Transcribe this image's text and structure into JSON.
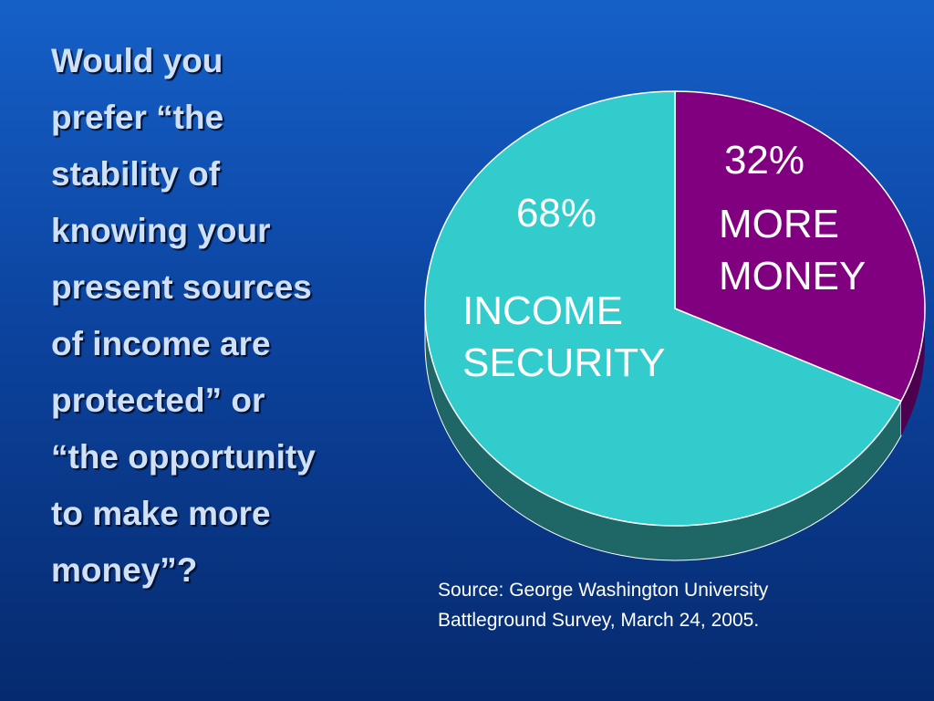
{
  "slide": {
    "question": "Would you\nprefer “the\nstability of\nknowing your\npresent sources\nof income are\nprotected” or\n“the opportunity\nto make more\nmoney”?",
    "source_line1": "Source: George Washington University",
    "source_line2": "Battleground Survey, March 24, 2005."
  },
  "colors": {
    "income_security": "#33CCCC",
    "income_security_side": "#1F6666",
    "more_money": "#800080",
    "more_money_side": "#4d004d"
  },
  "chart_data": {
    "type": "pie",
    "slices": [
      {
        "label_line1": "MORE",
        "label_line2": "MONEY",
        "percent_label": "32%",
        "value": 32
      },
      {
        "label_line1": "INCOME",
        "label_line2": "SECURITY",
        "percent_label": "68%",
        "value": 68
      }
    ]
  }
}
